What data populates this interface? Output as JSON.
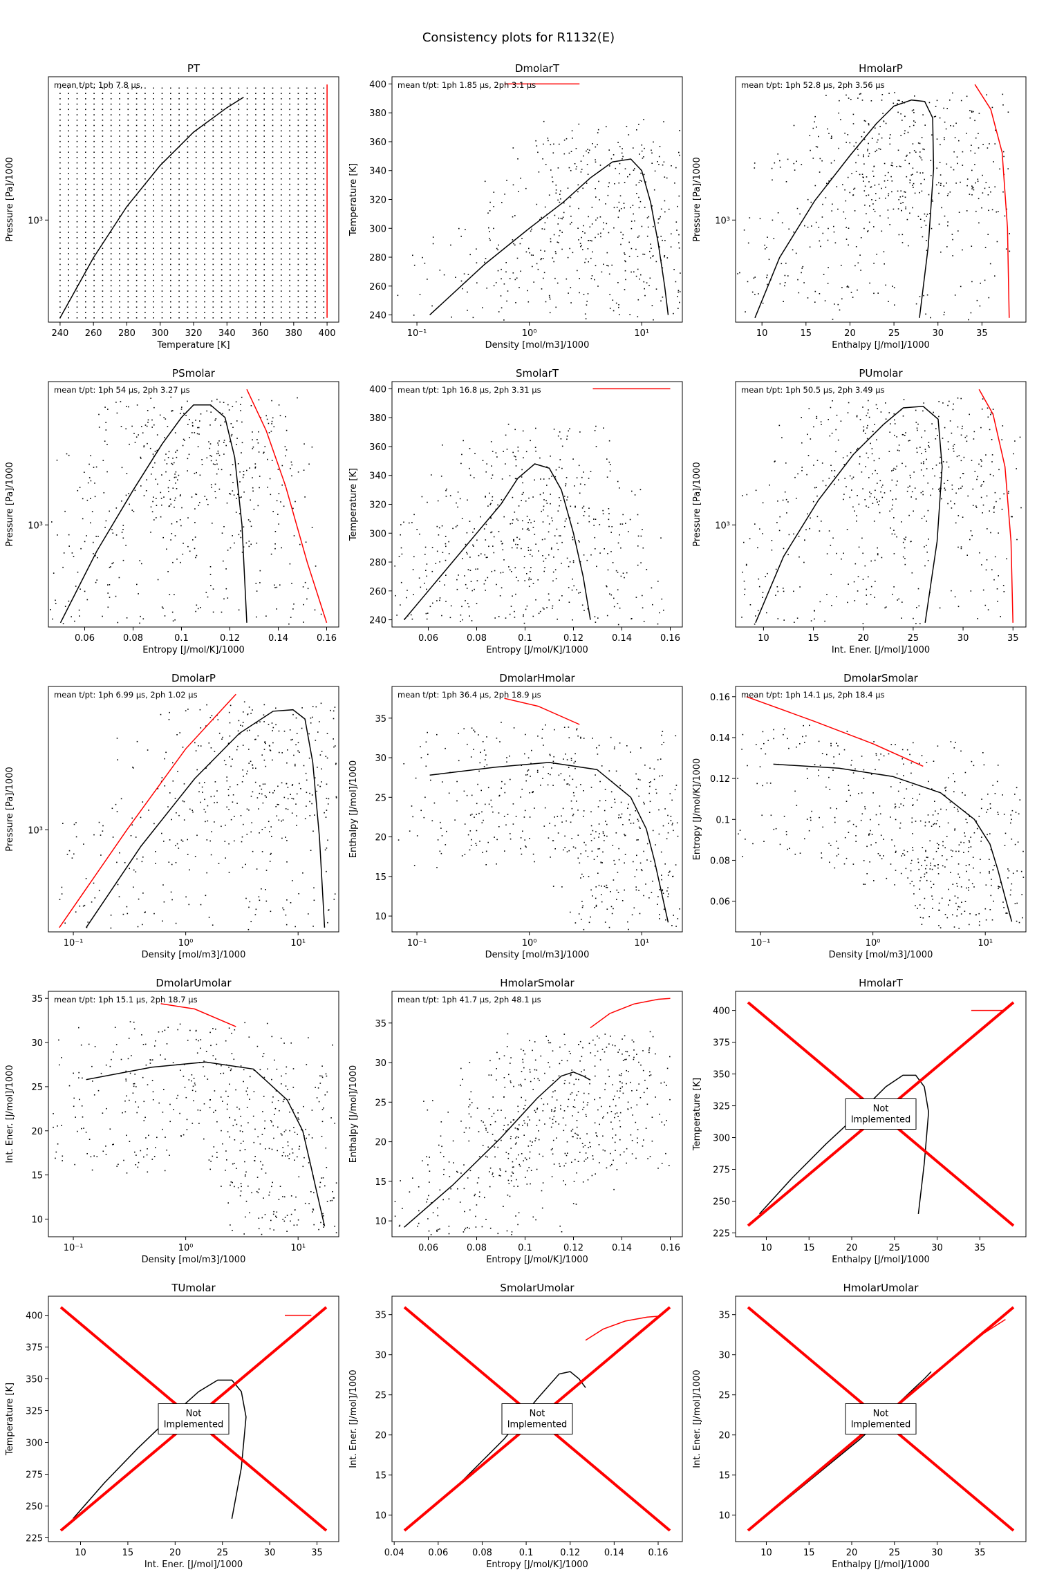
{
  "figure": {
    "title": "Consistency plots for R1132(E)"
  },
  "chart_data": [
    {
      "type": "scatter",
      "title": "PT",
      "xlabel": "Temperature [K]",
      "ylabel": "Pressure [Pa]/1000",
      "xlim": [
        233,
        407
      ],
      "xscale": "linear",
      "xticks": [
        240,
        260,
        280,
        300,
        320,
        340,
        360,
        380,
        400
      ],
      "ylim": [
        250,
        7000
      ],
      "yscale": "log",
      "yticks": [
        1000
      ],
      "ytick_labels": [
        "10^3"
      ],
      "annotation": "mean t/pt: 1ph 7.8 μs,",
      "grid": {
        "xmin": 240,
        "xmax": 398,
        "n": 32,
        "ymin": 265,
        "ymax": 6000,
        "m": 44
      },
      "saturation_line": {
        "x": [
          240,
          260,
          280,
          300,
          320,
          340,
          350
        ],
        "y": [
          265,
          600,
          1200,
          2100,
          3300,
          4600,
          5300
        ]
      },
      "red_line": {
        "x": [
          400,
          400
        ],
        "y": [
          265,
          6300
        ]
      }
    },
    {
      "type": "scatter",
      "title": "DmolarT",
      "xlabel": "Density [mol/m3]/1000",
      "ylabel": "Temperature [K]",
      "xlim": [
        0.06,
        23
      ],
      "xscale": "log",
      "xticks": [
        0.1,
        1,
        10
      ],
      "xtick_labels": [
        "10^-1",
        "10^0",
        "10^1"
      ],
      "ylim": [
        235,
        405
      ],
      "yscale": "linear",
      "yticks": [
        240,
        260,
        280,
        300,
        320,
        340,
        360,
        380,
        400
      ],
      "annotation": "mean t/pt: 1ph 1.85 μs, 2ph 3.1 μs",
      "saturation_line": {
        "x": [
          0.13,
          0.4,
          1.0,
          2.0,
          3.5,
          5.5,
          8.0,
          10.0,
          12.0,
          14.0,
          16.0,
          17.2
        ],
        "y": [
          240,
          275,
          300,
          318,
          335,
          346,
          348,
          340,
          318,
          290,
          260,
          240
        ]
      },
      "red_line": {
        "x": [
          0.6,
          2.8
        ],
        "y": [
          400,
          400
        ]
      }
    },
    {
      "type": "scatter",
      "title": "HmolarP",
      "xlabel": "Enthalpy [J/mol]/1000",
      "ylabel": "Pressure [Pa]/1000",
      "xlim": [
        7,
        40
      ],
      "xscale": "linear",
      "xticks": [
        10,
        15,
        20,
        25,
        30,
        35
      ],
      "ylim": [
        250,
        7000
      ],
      "yscale": "log",
      "yticks": [
        1000
      ],
      "ytick_labels": [
        "10^3"
      ],
      "annotation": "mean t/pt: 1ph 52.8 μs, 2ph 3.56 μs",
      "saturation_line": {
        "x": [
          9.2,
          12,
          16,
          20,
          23,
          25,
          27,
          28.5,
          29.4,
          29.5,
          28.9,
          27.9
        ],
        "y": [
          265,
          600,
          1300,
          2400,
          3700,
          4700,
          5100,
          5000,
          4000,
          2000,
          700,
          265
        ]
      },
      "red_line": {
        "x": [
          34.2,
          36,
          37.3,
          37.9,
          38.1
        ],
        "y": [
          6300,
          4500,
          2500,
          900,
          265
        ]
      }
    },
    {
      "type": "scatter",
      "title": "PSmolar",
      "xlabel": "Entropy [J/mol/K]/1000",
      "ylabel": "Pressure [Pa]/1000",
      "xlim": [
        0.045,
        0.165
      ],
      "xscale": "linear",
      "xticks": [
        0.06,
        0.08,
        0.1,
        0.12,
        0.14,
        0.16
      ],
      "ylim": [
        250,
        7000
      ],
      "yscale": "log",
      "yticks": [
        1000
      ],
      "ytick_labels": [
        "10^3"
      ],
      "annotation": "mean t/pt: 1ph 54 μs, 2ph 3.27 μs",
      "saturation_line": {
        "x": [
          0.05,
          0.065,
          0.08,
          0.092,
          0.1,
          0.105,
          0.112,
          0.118,
          0.122,
          0.125,
          0.127
        ],
        "y": [
          265,
          700,
          1600,
          3000,
          4300,
          5100,
          5100,
          4300,
          2500,
          1000,
          265
        ]
      },
      "red_line": {
        "x": [
          0.127,
          0.135,
          0.143,
          0.152,
          0.16
        ],
        "y": [
          6300,
          3600,
          1700,
          600,
          265
        ]
      }
    },
    {
      "type": "scatter",
      "title": "SmolarT",
      "xlabel": "Entropy [J/mol/K]/1000",
      "ylabel": "Temperature [K]",
      "xlim": [
        0.045,
        0.165
      ],
      "xscale": "linear",
      "xticks": [
        0.06,
        0.08,
        0.1,
        0.12,
        0.14,
        0.16
      ],
      "ylim": [
        235,
        405
      ],
      "yscale": "linear",
      "yticks": [
        240,
        260,
        280,
        300,
        320,
        340,
        360,
        380,
        400
      ],
      "annotation": "mean t/pt: 1ph 16.8 μs, 2ph 3.31 μs",
      "saturation_line": {
        "x": [
          0.05,
          0.06,
          0.07,
          0.08,
          0.09,
          0.097,
          0.104,
          0.11,
          0.115,
          0.12,
          0.124,
          0.127
        ],
        "y": [
          240,
          260,
          280,
          300,
          320,
          338,
          348,
          345,
          330,
          300,
          270,
          240
        ]
      },
      "red_line": {
        "x": [
          0.128,
          0.16
        ],
        "y": [
          400,
          400
        ]
      }
    },
    {
      "type": "scatter",
      "title": "PUmolar",
      "xlabel": "Int. Ener. [J/mol]/1000",
      "ylabel": "Pressure [Pa]/1000",
      "xlim": [
        7.2,
        36.3
      ],
      "xscale": "linear",
      "xticks": [
        10,
        15,
        20,
        25,
        30,
        35
      ],
      "ylim": [
        250,
        7000
      ],
      "yscale": "log",
      "yticks": [
        1000
      ],
      "ytick_labels": [
        "10^3"
      ],
      "annotation": "mean t/pt: 1ph 50.5 μs, 2ph 3.49 μs",
      "saturation_line": {
        "x": [
          9.2,
          12,
          15.5,
          19,
          22,
          24,
          26,
          27.5,
          27.9,
          27.4,
          26.2
        ],
        "y": [
          265,
          650,
          1400,
          2600,
          3900,
          4900,
          5000,
          4200,
          2200,
          800,
          265
        ]
      },
      "red_line": {
        "x": [
          31.6,
          33,
          34.2,
          34.8,
          35
        ],
        "y": [
          6300,
          4500,
          2200,
          800,
          265
        ]
      }
    },
    {
      "type": "scatter",
      "title": "DmolarP",
      "xlabel": "Density [mol/m3]/1000",
      "ylabel": "Pressure [Pa]/1000",
      "xlim": [
        0.06,
        23
      ],
      "xscale": "log",
      "xticks": [
        0.1,
        1,
        10
      ],
      "xtick_labels": [
        "10^-1",
        "10^0",
        "10^1"
      ],
      "ylim": [
        250,
        7000
      ],
      "yscale": "log",
      "yticks": [
        1000
      ],
      "ytick_labels": [
        "10^3"
      ],
      "annotation": "mean t/pt: 1ph 6.99 μs, 2ph 1.02 μs",
      "saturation_line": {
        "x": [
          0.13,
          0.4,
          1.2,
          3.0,
          6.0,
          9.0,
          11.5,
          13.5,
          15.5,
          17.2
        ],
        "y": [
          265,
          800,
          2000,
          3700,
          5000,
          5100,
          4500,
          2500,
          900,
          265
        ]
      },
      "red_line": {
        "x": [
          0.075,
          0.3,
          1.0,
          2.8
        ],
        "y": [
          265,
          1000,
          3000,
          6300
        ]
      }
    },
    {
      "type": "scatter",
      "title": "DmolarHmolar",
      "xlabel": "Density [mol/m3]/1000",
      "ylabel": "Enthalpy [J/mol]/1000",
      "xlim": [
        0.06,
        23
      ],
      "xscale": "log",
      "xticks": [
        0.1,
        1,
        10
      ],
      "xtick_labels": [
        "10^-1",
        "10^0",
        "10^1"
      ],
      "ylim": [
        8,
        39
      ],
      "yscale": "linear",
      "yticks": [
        10,
        15,
        20,
        25,
        30,
        35
      ],
      "annotation": "mean t/pt: 1ph 36.4 μs, 2ph 18.9 μs",
      "saturation_line": {
        "x": [
          0.13,
          0.5,
          1.5,
          4.0,
          8.0,
          11,
          13,
          15,
          17.2
        ],
        "y": [
          27.8,
          28.8,
          29.4,
          28.5,
          25,
          21,
          17,
          13,
          9.2
        ]
      },
      "red_line": {
        "x": [
          0.6,
          1.2,
          2.8
        ],
        "y": [
          37.5,
          36.5,
          34.2
        ]
      }
    },
    {
      "type": "scatter",
      "title": "DmolarSmolar",
      "xlabel": "Density [mol/m3]/1000",
      "ylabel": "Entropy [J/mol/K]/1000",
      "xlim": [
        0.06,
        23
      ],
      "xscale": "log",
      "xticks": [
        0.1,
        1,
        10
      ],
      "xtick_labels": [
        "10^-1",
        "10^0",
        "10^1"
      ],
      "ylim": [
        0.045,
        0.165
      ],
      "yscale": "linear",
      "yticks": [
        0.06,
        0.08,
        0.1,
        0.12,
        0.14,
        0.16
      ],
      "annotation": "mean t/pt: 1ph 14.1 μs, 2ph 18.4 μs",
      "saturation_line": {
        "x": [
          0.13,
          0.5,
          1.5,
          4.0,
          8.0,
          11,
          13,
          15,
          17.2
        ],
        "y": [
          0.127,
          0.125,
          0.121,
          0.113,
          0.1,
          0.088,
          0.075,
          0.062,
          0.05
        ]
      },
      "red_line": {
        "x": [
          0.075,
          0.3,
          1.0,
          2.8
        ],
        "y": [
          0.16,
          0.148,
          0.137,
          0.126
        ]
      }
    },
    {
      "type": "scatter",
      "title": "DmolarUmolar",
      "xlabel": "Density [mol/m3]/1000",
      "ylabel": "Int. Ener. [J/mol]/1000",
      "xlim": [
        0.06,
        23
      ],
      "xscale": "log",
      "xticks": [
        0.1,
        1,
        10
      ],
      "xtick_labels": [
        "10^-1",
        "10^0",
        "10^1"
      ],
      "ylim": [
        8,
        35.8
      ],
      "yscale": "linear",
      "yticks": [
        10,
        15,
        20,
        25,
        30,
        35
      ],
      "annotation": "mean t/pt: 1ph 15.1 μs, 2ph 18.7 μs",
      "saturation_line": {
        "x": [
          0.13,
          0.5,
          1.5,
          4.0,
          8.0,
          11,
          13,
          15,
          17.2
        ],
        "y": [
          25.8,
          27.2,
          27.8,
          27,
          23.5,
          20,
          16,
          12.5,
          9.2
        ]
      },
      "red_line": {
        "x": [
          0.6,
          1.2,
          2.8
        ],
        "y": [
          34.4,
          33.8,
          31.8
        ]
      }
    },
    {
      "type": "scatter",
      "title": "HmolarSmolar",
      "xlabel": "Entropy [J/mol/K]/1000",
      "ylabel": "Enthalpy [J/mol]/1000",
      "xlim": [
        0.045,
        0.165
      ],
      "xscale": "linear",
      "xticks": [
        0.06,
        0.08,
        0.1,
        0.12,
        0.14,
        0.16
      ],
      "ylim": [
        8,
        39
      ],
      "yscale": "linear",
      "yticks": [
        10,
        15,
        20,
        25,
        30,
        35
      ],
      "annotation": "mean t/pt: 1ph 41.7 μs, 2ph 48.1 μs",
      "saturation_line": {
        "x": [
          0.05,
          0.07,
          0.09,
          0.105,
          0.115,
          0.12,
          0.124,
          0.127
        ],
        "y": [
          9.2,
          14.5,
          20.5,
          25.5,
          28.3,
          28.8,
          28.3,
          27.8
        ]
      },
      "red_line": {
        "x": [
          0.127,
          0.135,
          0.145,
          0.155,
          0.16
        ],
        "y": [
          34.4,
          36.2,
          37.4,
          38,
          38.1
        ]
      }
    },
    {
      "type": "scatter",
      "title": "HmolarT",
      "xlabel": "Enthalpy [J/mol]/1000",
      "ylabel": "Temperature [K]",
      "xlim": [
        6.4,
        40.4
      ],
      "xscale": "linear",
      "xticks": [
        10,
        15,
        20,
        25,
        30,
        35
      ],
      "ylim": [
        222,
        415
      ],
      "yscale": "linear",
      "yticks": [
        225,
        250,
        275,
        300,
        325,
        350,
        375,
        400
      ],
      "not_implemented": "Not\nImplemented",
      "saturation_line": {
        "x": [
          9.2,
          13,
          17,
          21,
          24,
          26,
          27.5,
          28.5,
          29,
          28.5,
          27.8
        ],
        "y": [
          240,
          268,
          295,
          320,
          340,
          349,
          349,
          340,
          320,
          280,
          240
        ]
      },
      "red_line": {
        "x": [
          34,
          38
        ],
        "y": [
          400,
          400
        ]
      }
    },
    {
      "type": "scatter",
      "title": "TUmolar",
      "xlabel": "Int. Ener. [J/mol]/1000",
      "ylabel": "Temperature [K]",
      "xlim": [
        6.6,
        37.3
      ],
      "xscale": "linear",
      "xticks": [
        10,
        15,
        20,
        25,
        30,
        35
      ],
      "ylim": [
        222,
        415
      ],
      "yscale": "linear",
      "yticks": [
        225,
        250,
        275,
        300,
        325,
        350,
        375,
        400
      ],
      "not_implemented": "Not\nImplemented",
      "saturation_line": {
        "x": [
          9.2,
          12.5,
          16,
          19.5,
          22.5,
          24.5,
          26,
          27,
          27.5,
          27,
          26
        ],
        "y": [
          240,
          268,
          295,
          320,
          340,
          349,
          349,
          340,
          320,
          280,
          240
        ]
      },
      "red_line": {
        "x": [
          31.6,
          34.4
        ],
        "y": [
          400,
          400
        ]
      }
    },
    {
      "type": "scatter",
      "title": "SmolarUmolar",
      "xlabel": "Entropy [J/mol/K]/1000",
      "ylabel": "Int. Ener. [J/mol]/1000",
      "xlim": [
        0.039,
        0.171
      ],
      "xscale": "linear",
      "xticks": [
        0.04,
        0.06,
        0.08,
        0.1,
        0.12,
        0.14,
        0.16
      ],
      "ylim": [
        6.7,
        37.3
      ],
      "yscale": "linear",
      "yticks": [
        10,
        15,
        20,
        25,
        30,
        35
      ],
      "not_implemented": "Not\nImplemented",
      "saturation_line": {
        "x": [
          0.05,
          0.07,
          0.09,
          0.105,
          0.115,
          0.12,
          0.124,
          0.127
        ],
        "y": [
          9.2,
          14,
          19.5,
          24.5,
          27.6,
          27.9,
          27,
          25.9
        ]
      },
      "red_line": {
        "x": [
          0.127,
          0.135,
          0.145,
          0.155,
          0.16
        ],
        "y": [
          31.8,
          33.2,
          34.2,
          34.7,
          34.8
        ]
      }
    },
    {
      "type": "scatter",
      "title": "HmolarUmolar",
      "xlabel": "Enthalpy [J/mol]/1000",
      "ylabel": "Int. Ener. [J/mol]/1000",
      "xlim": [
        6.4,
        40.4
      ],
      "xscale": "linear",
      "xticks": [
        10,
        15,
        20,
        25,
        30,
        35
      ],
      "ylim": [
        6.7,
        37.3
      ],
      "yscale": "linear",
      "yticks": [
        10,
        15,
        20,
        25,
        30,
        35
      ],
      "not_implemented": "Not\nImplemented",
      "saturation_line": {
        "x": [
          9.2,
          13,
          17,
          21,
          24,
          26,
          27.5,
          28.5,
          29.3
        ],
        "y": [
          9.2,
          12.5,
          16,
          19.5,
          22.5,
          24.5,
          26,
          27,
          27.9
        ]
      },
      "red_line": {
        "x": [
          34.2,
          38
        ],
        "y": [
          31.8,
          34.4
        ]
      }
    }
  ]
}
